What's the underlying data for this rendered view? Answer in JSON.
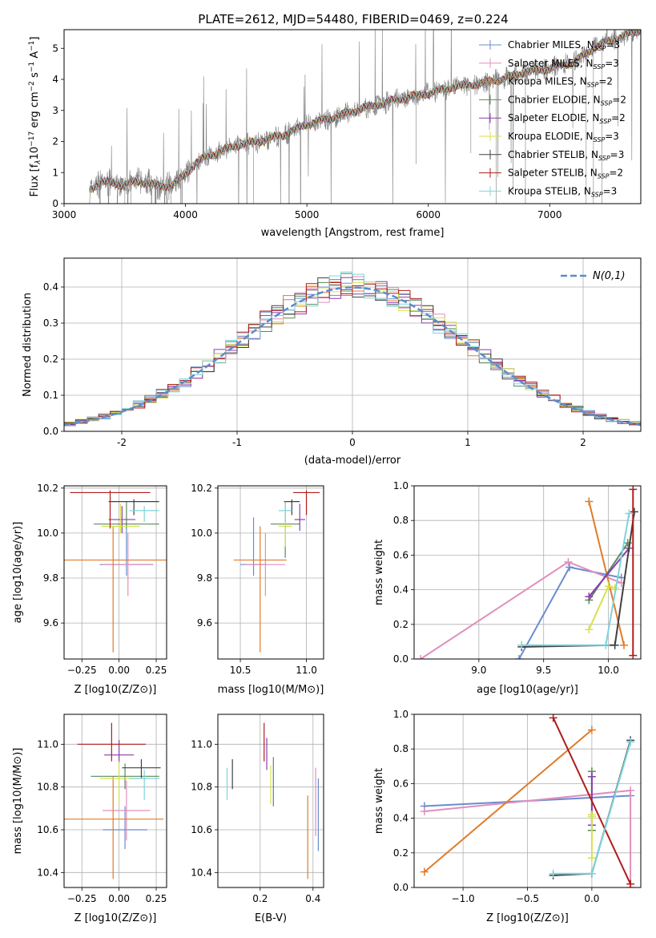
{
  "figure_title": "PLATE=2612, MJD=54480, FIBERID=0469, z=0.224",
  "colors": {
    "axes": "#000000",
    "grid": "#b0b0b0",
    "data_spectrum": "#808080",
    "gaussian": "#5b8bd0"
  },
  "models": [
    {
      "name": "Chabrier MILES",
      "nssp": 3,
      "color": "#6a8ccf"
    },
    {
      "name": "Salpeter MILES",
      "nssp": 3,
      "color": "#e08fbd"
    },
    {
      "name": "Kroupa MILES",
      "nssp": 2,
      "color": "#e07b28"
    },
    {
      "name": "Chabrier ELODIE",
      "nssp": 2,
      "color": "#5a8a5a"
    },
    {
      "name": "Salpeter ELODIE",
      "nssp": 2,
      "color": "#8e3cb0"
    },
    {
      "name": "Kroupa ELODIE",
      "nssp": 3,
      "color": "#d7e24c"
    },
    {
      "name": "Chabrier STELIB",
      "nssp": 3,
      "color": "#404040"
    },
    {
      "name": "Salpeter STELIB",
      "nssp": 2,
      "color": "#b01c1c"
    },
    {
      "name": "Kroupa STELIB",
      "nssp": 3,
      "color": "#7fd3dc"
    }
  ],
  "legend_nssp_prefix": "N",
  "legend_nssp_sub": "SSP",
  "legend_nssp_suffix": "=",
  "chart_data": [
    {
      "id": "spectrum",
      "type": "line",
      "title": "PLATE=2612, MJD=54480, FIBERID=0469, z=0.224",
      "xlabel": "wavelength [Angstrom, rest frame]",
      "ylabel": "Flux [f",
      "ylabel_parts": [
        "Flux [f",
        "λ",
        "10",
        "−17",
        " erg cm",
        "−2",
        " s",
        "−1",
        " A",
        "−1",
        "]"
      ],
      "xlim": [
        3000,
        7750
      ],
      "ylim": [
        0,
        5.6
      ],
      "xticks": [
        3000,
        4000,
        5000,
        6000,
        7000
      ],
      "yticks": [
        0,
        1,
        2,
        3,
        4,
        5
      ],
      "legend": "top-right",
      "continuum": {
        "x": [
          3210,
          3300,
          3400,
          3500,
          3600,
          3700,
          3800,
          3900,
          4000,
          4100,
          4200,
          4400,
          4600,
          4800,
          5000,
          5200,
          5400,
          5600,
          5800,
          6000,
          6200,
          6400,
          6600,
          6800,
          7000,
          7200,
          7400,
          7750
        ],
        "y": [
          0.45,
          0.7,
          0.65,
          0.6,
          0.72,
          0.65,
          0.55,
          0.6,
          0.95,
          1.35,
          1.55,
          1.85,
          2.0,
          2.2,
          2.55,
          2.75,
          3.0,
          3.2,
          3.4,
          3.55,
          3.75,
          3.85,
          4.0,
          4.25,
          4.35,
          4.55,
          5.1,
          5.6
        ]
      }
    },
    {
      "id": "residuals",
      "type": "histogram",
      "xlabel": "(data-model)/error",
      "ylabel": "Normed distribution",
      "xlim": [
        -2.5,
        2.5
      ],
      "ylim": [
        0,
        0.48
      ],
      "xticks": [
        -2,
        -1,
        0,
        1,
        2
      ],
      "yticks": [
        0.0,
        0.1,
        0.2,
        0.3,
        0.4
      ],
      "legend_label": "N(0,1)",
      "legend": "top-right",
      "bin_width": 0.1
    },
    {
      "id": "age_vs_Z",
      "type": "errorbar",
      "xlabel": "Z [log10(Z/Z⊙)]",
      "ylabel": "age [log10(age/yr)]",
      "xlim": [
        -0.37,
        0.32
      ],
      "ylim": [
        9.44,
        10.21
      ],
      "xticks": [
        -0.25,
        0.0,
        0.25
      ],
      "xticklabels": [
        "−0.25",
        "0.00",
        "0.25"
      ],
      "yticks": [
        9.6,
        9.8,
        10.0,
        10.2
      ],
      "points": [
        {
          "x": 0.05,
          "y": 9.86,
          "xerr": 0.18,
          "yerr_lo": 0.05,
          "yerr_hi": 0.19
        },
        {
          "x": 0.06,
          "y": 9.86,
          "xerr": 0.17,
          "yerr_lo": 0.14,
          "yerr_hi": 0.14
        },
        {
          "x": -0.04,
          "y": 9.88,
          "xerr": 0.36,
          "yerr_lo": 0.41,
          "yerr_hi": 0.15
        },
        {
          "x": 0.05,
          "y": 10.04,
          "xerr": 0.22,
          "yerr_lo": 0.02,
          "yerr_hi": 0.1
        },
        {
          "x": 0.02,
          "y": 10.06,
          "xerr": 0.09,
          "yerr_lo": 0.06,
          "yerr_hi": 0.06
        },
        {
          "x": 0.01,
          "y": 10.03,
          "xerr": 0.13,
          "yerr_lo": 0.03,
          "yerr_hi": 0.1
        },
        {
          "x": 0.1,
          "y": 10.14,
          "xerr": 0.17,
          "yerr_lo": 0.06,
          "yerr_hi": 0.01
        },
        {
          "x": -0.06,
          "y": 10.18,
          "xerr": 0.27,
          "yerr_lo": 0.16,
          "yerr_hi": 0.01
        },
        {
          "x": 0.17,
          "y": 10.1,
          "xerr": 0.1,
          "yerr_lo": 0.05,
          "yerr_hi": 0.02
        }
      ]
    },
    {
      "id": "age_vs_mass",
      "type": "errorbar",
      "xlabel": "mass [log10(M/M⊙)]",
      "ylabel": "",
      "xlim": [
        10.33,
        11.13
      ],
      "ylim": [
        9.44,
        10.21
      ],
      "xticks": [
        10.5,
        11.0
      ],
      "xticklabels": [
        "10.5",
        "11.0"
      ],
      "yticks": [
        9.6,
        9.8,
        10.0,
        10.2
      ],
      "points": [
        {
          "x": 10.6,
          "y": 9.86,
          "xerr": 0.1,
          "yerr_lo": 0.05,
          "yerr_hi": 0.21
        },
        {
          "x": 10.69,
          "y": 9.86,
          "xerr": 0.15,
          "yerr_lo": 0.14,
          "yerr_hi": 0.14
        },
        {
          "x": 10.65,
          "y": 9.88,
          "xerr": 0.2,
          "yerr_lo": 0.41,
          "yerr_hi": 0.15
        },
        {
          "x": 10.84,
          "y": 10.04,
          "xerr": 0.11,
          "yerr_lo": 0.15,
          "yerr_hi": 0.1
        },
        {
          "x": 10.95,
          "y": 10.06,
          "xerr": 0.04,
          "yerr_lo": 0.05,
          "yerr_hi": 0.07
        },
        {
          "x": 10.84,
          "y": 10.03,
          "xerr": 0.05,
          "yerr_lo": 0.09,
          "yerr_hi": 0.1
        },
        {
          "x": 10.89,
          "y": 10.14,
          "xerr": 0.06,
          "yerr_lo": 0.06,
          "yerr_hi": 0.01
        },
        {
          "x": 11.0,
          "y": 10.18,
          "xerr": 0.1,
          "yerr_lo": 0.1,
          "yerr_hi": 0.01
        },
        {
          "x": 10.84,
          "y": 10.1,
          "xerr": 0.05,
          "yerr_lo": 0.05,
          "yerr_hi": 0.04
        }
      ]
    },
    {
      "id": "weight_vs_age",
      "type": "line",
      "xlabel": "age [log10(age/yr)]",
      "ylabel": "mass weight",
      "xlim": [
        8.5,
        10.25
      ],
      "ylim": [
        0,
        1
      ],
      "xticks": [
        9.0,
        9.5,
        10.0
      ],
      "xticklabels": [
        "9.0",
        "9.5",
        "10.0"
      ],
      "yticks": [
        0.0,
        0.2,
        0.4,
        0.6,
        0.8,
        1.0
      ],
      "yticklabels": [
        "0.0",
        "0.2",
        "0.4",
        "0.6",
        "0.8",
        "1.0"
      ],
      "series": [
        {
          "model": 0,
          "x": [
            9.31,
            9.7,
            10.1
          ],
          "y": [
            0.0,
            0.53,
            0.47
          ]
        },
        {
          "model": 1,
          "x": [
            8.55,
            9.69,
            10.1
          ],
          "y": [
            0.0,
            0.56,
            0.44
          ]
        },
        {
          "model": 2,
          "x": [
            9.85,
            10.12
          ],
          "y": [
            0.91,
            0.08
          ]
        },
        {
          "model": 3,
          "x": [
            9.85,
            10.15
          ],
          "y": [
            0.34,
            0.67
          ]
        },
        {
          "model": 4,
          "x": [
            9.85,
            10.16
          ],
          "y": [
            0.36,
            0.64
          ]
        },
        {
          "model": 5,
          "x": [
            9.85,
            10.0,
            10.05
          ],
          "y": [
            0.17,
            0.42,
            0.41
          ]
        },
        {
          "model": 6,
          "x": [
            9.33,
            10.05,
            10.2
          ],
          "y": [
            0.07,
            0.08,
            0.85
          ]
        },
        {
          "model": 7,
          "x": [
            10.19,
            10.19
          ],
          "y": [
            0.02,
            0.98
          ]
        },
        {
          "model": 8,
          "x": [
            9.33,
            9.98,
            10.16
          ],
          "y": [
            0.08,
            0.08,
            0.84
          ]
        }
      ]
    },
    {
      "id": "mass_vs_Z",
      "type": "errorbar",
      "xlabel": "Z [log10(Z/Z⊙)]",
      "ylabel": "mass [log10(M/M⊙)]",
      "xlim": [
        -0.37,
        0.32
      ],
      "ylim": [
        10.33,
        11.14
      ],
      "xticks": [
        -0.25,
        0.0,
        0.25
      ],
      "xticklabels": [
        "−0.25",
        "0.00",
        "0.25"
      ],
      "yticks": [
        10.4,
        10.6,
        10.8,
        11.0
      ],
      "yticklabels": [
        "10.4",
        "10.6",
        "10.8",
        "11.0"
      ],
      "points": [
        {
          "x": 0.04,
          "y": 10.6,
          "xerr": 0.15,
          "yerr_lo": 0.09,
          "yerr_hi": 0.11
        },
        {
          "x": 0.05,
          "y": 10.69,
          "xerr": 0.16,
          "yerr_lo": 0.14,
          "yerr_hi": 0.14
        },
        {
          "x": -0.04,
          "y": 10.65,
          "xerr": 0.34,
          "yerr_lo": 0.28,
          "yerr_hi": 0.2
        },
        {
          "x": 0.04,
          "y": 10.85,
          "xerr": 0.23,
          "yerr_lo": 0.06,
          "yerr_hi": 0.06
        },
        {
          "x": 0.0,
          "y": 10.95,
          "xerr": 0.1,
          "yerr_lo": 0.04,
          "yerr_hi": 0.07
        },
        {
          "x": 0.0,
          "y": 10.84,
          "xerr": 0.13,
          "yerr_lo": 0.12,
          "yerr_hi": 0.08
        },
        {
          "x": 0.15,
          "y": 10.89,
          "xerr": 0.13,
          "yerr_lo": 0.05,
          "yerr_hi": 0.04
        },
        {
          "x": -0.05,
          "y": 11.0,
          "xerr": 0.23,
          "yerr_lo": 0.08,
          "yerr_hi": 0.1
        },
        {
          "x": 0.17,
          "y": 10.84,
          "xerr": 0.1,
          "yerr_lo": 0.1,
          "yerr_hi": 0.04
        }
      ]
    },
    {
      "id": "mass_vs_ebv",
      "type": "errorbar",
      "xlabel": "E(B-V)",
      "ylabel": "",
      "xlim": [
        0.04,
        0.44
      ],
      "ylim": [
        10.33,
        11.14
      ],
      "xticks": [
        0.2,
        0.4
      ],
      "xticklabels": [
        "0.2",
        "0.4"
      ],
      "yticks": [
        10.4,
        10.6,
        10.8,
        11.0
      ],
      "yticklabels": [
        "10.4",
        "10.6",
        "10.8",
        "11.0"
      ],
      "points": [
        {
          "x": 0.42,
          "y": 10.67,
          "yerr_lo": 0.17,
          "yerr_hi": 0.17
        },
        {
          "x": 0.41,
          "y": 10.72,
          "yerr_lo": 0.15,
          "yerr_hi": 0.17
        },
        {
          "x": 0.38,
          "y": 10.57,
          "yerr_lo": 0.2,
          "yerr_hi": 0.19
        },
        {
          "x": 0.25,
          "y": 10.83,
          "yerr_lo": 0.12,
          "yerr_hi": 0.11
        },
        {
          "x": 0.225,
          "y": 10.98,
          "yerr_lo": 0.1,
          "yerr_hi": 0.05
        },
        {
          "x": 0.24,
          "y": 10.82,
          "yerr_lo": 0.1,
          "yerr_hi": 0.08
        },
        {
          "x": 0.095,
          "y": 10.86,
          "yerr_lo": 0.07,
          "yerr_hi": 0.07
        },
        {
          "x": 0.215,
          "y": 11.0,
          "yerr_lo": 0.08,
          "yerr_hi": 0.1
        },
        {
          "x": 0.075,
          "y": 10.82,
          "yerr_lo": 0.08,
          "yerr_hi": 0.07
        }
      ]
    },
    {
      "id": "weight_vs_Z",
      "type": "line",
      "xlabel": "Z [log10(Z/Z⊙)]",
      "ylabel": "mass weight",
      "xlim": [
        -1.38,
        0.38
      ],
      "ylim": [
        0,
        1
      ],
      "xticks": [
        -1.0,
        -0.5,
        0.0
      ],
      "xticklabels": [
        "−1.0",
        "−0.5",
        "0.0"
      ],
      "yticks": [
        0.0,
        0.2,
        0.4,
        0.6,
        0.8,
        1.0
      ],
      "yticklabels": [
        "0.0",
        "0.2",
        "0.4",
        "0.6",
        "0.8",
        "1.0"
      ],
      "series": [
        {
          "model": 0,
          "x": [
            -1.3,
            0.3
          ],
          "y": [
            0.47,
            0.53
          ]
        },
        {
          "model": 1,
          "x": [
            -1.3,
            0.3,
            0.3
          ],
          "y": [
            0.44,
            0.56,
            0.0
          ]
        },
        {
          "model": 2,
          "x": [
            -1.3,
            0.0
          ],
          "y": [
            0.09,
            0.91
          ]
        },
        {
          "model": 3,
          "x": [
            0.0,
            0.0
          ],
          "y": [
            0.33,
            0.67
          ]
        },
        {
          "model": 4,
          "x": [
            0.0,
            0.0
          ],
          "y": [
            0.36,
            0.64
          ]
        },
        {
          "model": 5,
          "x": [
            0.0,
            0.0,
            0.0
          ],
          "y": [
            0.17,
            0.42,
            0.41
          ]
        },
        {
          "model": 6,
          "x": [
            -0.3,
            0.0,
            0.3
          ],
          "y": [
            0.07,
            0.08,
            0.85
          ]
        },
        {
          "model": 7,
          "x": [
            -0.3,
            0.3
          ],
          "y": [
            0.98,
            0.02
          ]
        },
        {
          "model": 8,
          "x": [
            -0.3,
            0.0,
            0.3
          ],
          "y": [
            0.08,
            0.08,
            0.84
          ]
        }
      ]
    }
  ]
}
